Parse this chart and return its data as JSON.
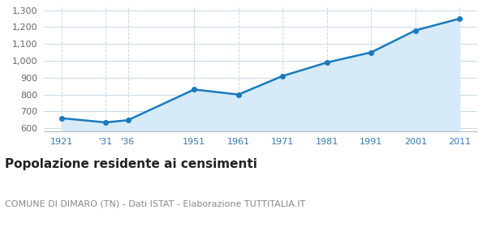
{
  "years": [
    1921,
    1931,
    1936,
    1951,
    1961,
    1971,
    1981,
    1991,
    2001,
    2011
  ],
  "x_labels": [
    "1921",
    "'31",
    "'36",
    "1951",
    "1961",
    "1971",
    "1981",
    "1991",
    "2001",
    "2011"
  ],
  "population": [
    660,
    635,
    648,
    830,
    800,
    910,
    990,
    1050,
    1180,
    1250
  ],
  "line_color": "#1a7abf",
  "fill_color": "#d6eaf8",
  "marker_color": "#1a7abf",
  "background_color": "#ffffff",
  "grid_color": "#c8d8e8",
  "ylim": [
    580,
    1320
  ],
  "yticks": [
    600,
    700,
    800,
    900,
    1000,
    1100,
    1200,
    1300
  ],
  "title": "Popolazione residente ai censimenti",
  "subtitle": "COMUNE DI DIMARO (TN) - Dati ISTAT - Elaborazione TUTTITALIA.IT",
  "title_fontsize": 11,
  "subtitle_fontsize": 8,
  "xtick_fontsize": 8,
  "ytick_fontsize": 8,
  "line_width": 1.8,
  "marker_size": 4,
  "xtick_color": "#3377bb",
  "ytick_color": "#666666",
  "title_color": "#222222",
  "subtitle_color": "#888888"
}
